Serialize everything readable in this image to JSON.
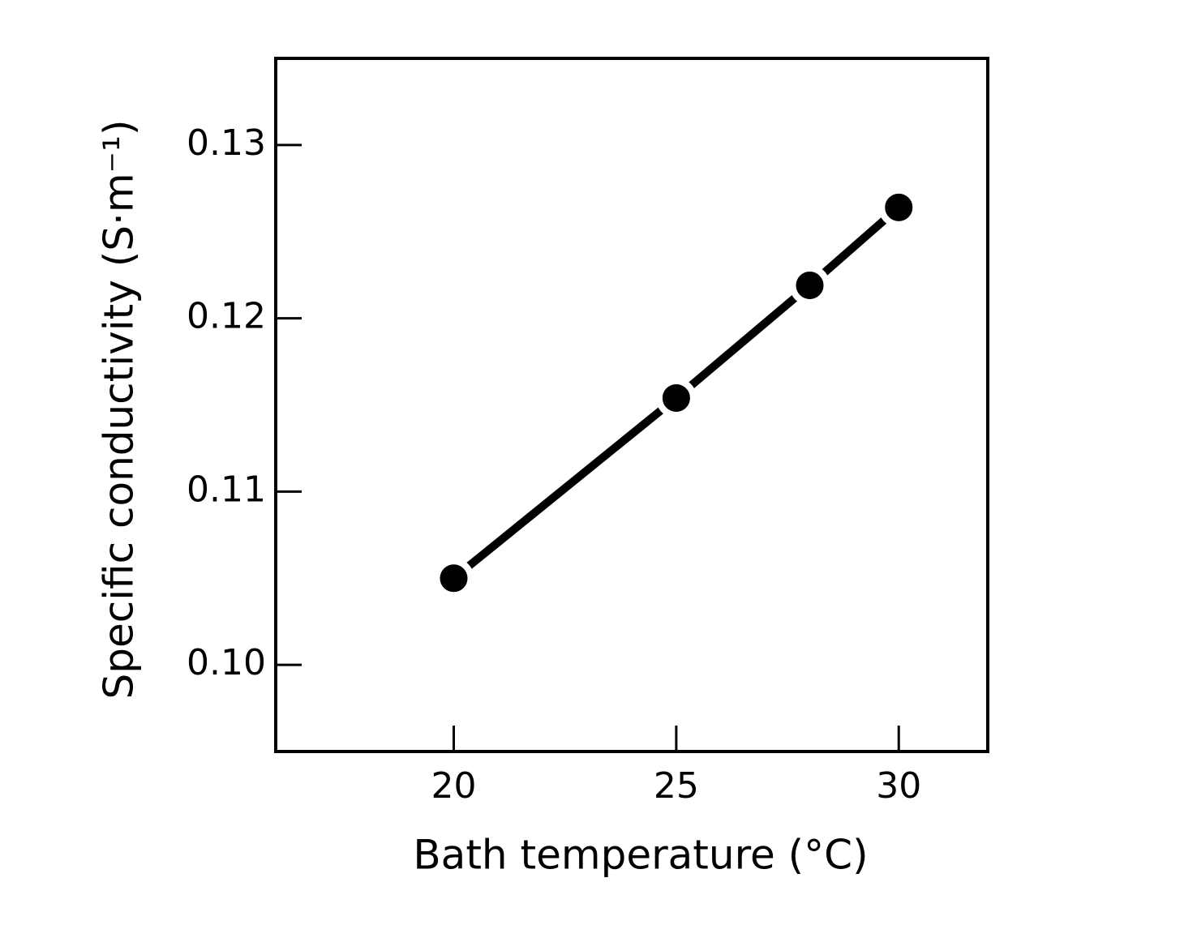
{
  "chart_data": {
    "type": "line",
    "x_label": "Bath temperature (°C)",
    "y_label": "Specific conductivity (S·m⁻¹)",
    "x": [
      20,
      25,
      28,
      30
    ],
    "values": [
      0.105,
      0.1154,
      0.1219,
      0.1264
    ],
    "color": "#000000",
    "xlim": [
      16,
      32
    ],
    "xticks": [
      20,
      25,
      30
    ],
    "ylim": [
      0.095,
      0.135
    ],
    "yticks": [
      {
        "value": 0.1,
        "label": "0.10"
      },
      0.11,
      0.12,
      0.13
    ],
    "grid": false
  }
}
